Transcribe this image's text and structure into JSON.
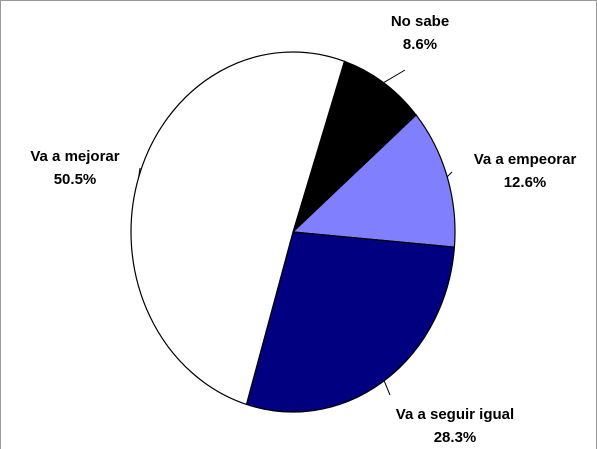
{
  "chart_data": {
    "type": "pie",
    "categories": [
      "No sabe",
      "Va a empeorar",
      "Va a seguir igual",
      "Va a mejorar"
    ],
    "values": [
      8.6,
      12.6,
      28.3,
      50.5
    ],
    "value_labels": [
      "8.6%",
      "12.6%",
      "28.3%",
      "50.5%"
    ],
    "colors": [
      "#000000",
      "#8080ff",
      "#000080",
      "#ffffff"
    ]
  }
}
